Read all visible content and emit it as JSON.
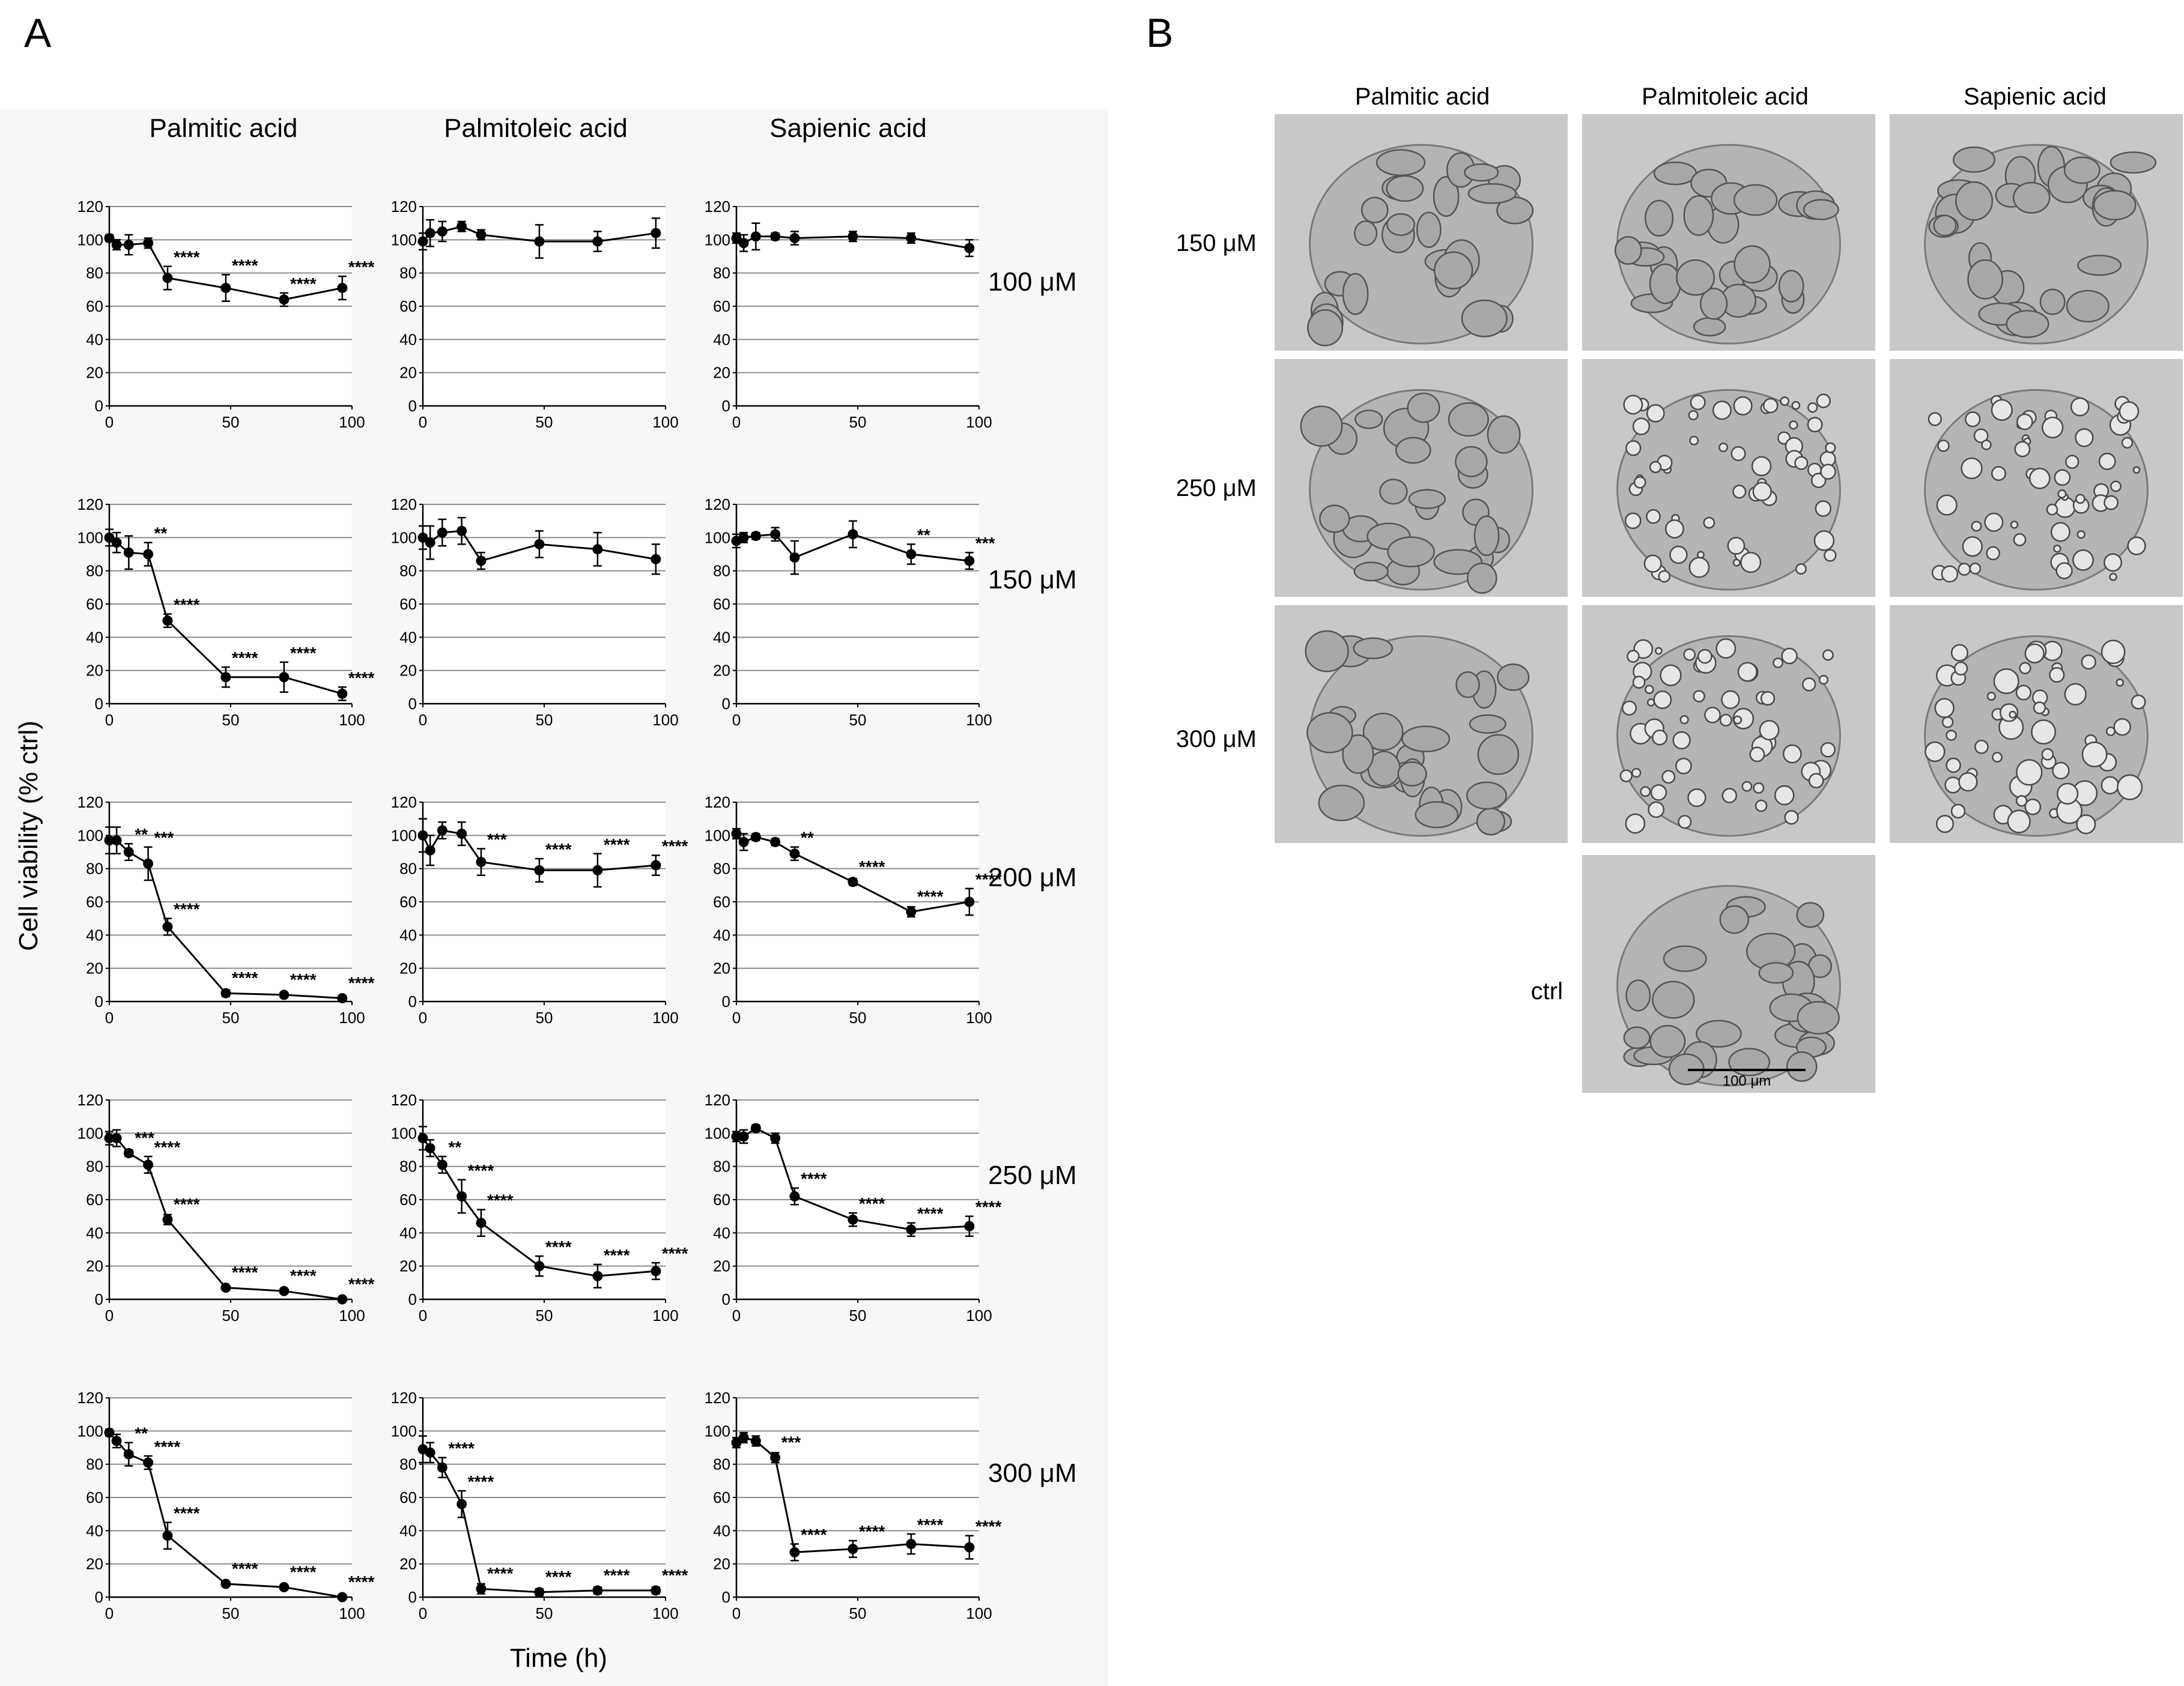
{
  "panels": {
    "a_label": "A",
    "b_label": "B"
  },
  "panelA": {
    "column_titles": [
      "Palmitic acid",
      "Palmitoleic acid",
      "Sapienic acid"
    ],
    "row_labels": [
      "100 μM",
      "150 μM",
      "200 μM",
      "250 μM",
      "300 μM"
    ],
    "ylabel": "Cell viability (% ctrl)",
    "xlabel": "Time (h)"
  },
  "panelB": {
    "column_titles": [
      "Palmitic acid",
      "Palmitoleic acid",
      "Sapienic acid"
    ],
    "row_labels": [
      "150 μM",
      "250 μM",
      "300 μM",
      "ctrl"
    ],
    "scale_bar_label": "100 μm",
    "image_kinds": [
      [
        "flat_cells",
        "flat_cells",
        "flat_cells"
      ],
      [
        "clustered_cells",
        "lipid_droplets",
        "lipid_droplets"
      ],
      [
        "dispersed_cells",
        "lipid_droplets_cluster",
        "lipid_droplets_dense"
      ]
    ],
    "ctrl_kind": "flat_cells"
  },
  "colors": {
    "marker": "#000000",
    "gridline": "#8c8c8c",
    "panel_background": "#f7f7f7",
    "photo_background": "#c8c8c8"
  },
  "chart_data": [
    {
      "type": "line",
      "title": "Palmitic acid",
      "subtitle": "100 μM",
      "x": [
        0,
        3,
        8,
        16,
        24,
        48,
        72,
        96
      ],
      "y": [
        101,
        97,
        97,
        98,
        77,
        71,
        64,
        71
      ],
      "err": [
        2,
        3,
        6,
        3,
        7,
        8,
        4,
        7
      ],
      "sig": [
        "",
        "",
        "",
        "",
        "****",
        "****",
        "****",
        "****"
      ],
      "ylim": [
        0,
        120
      ],
      "xlim": [
        0,
        100
      ],
      "yticks": [
        0,
        20,
        40,
        60,
        80,
        100,
        120
      ],
      "xticks": [
        0,
        50,
        100
      ],
      "grid": true
    },
    {
      "type": "line",
      "title": "Palmitoleic acid",
      "subtitle": "100 μM",
      "x": [
        0,
        3,
        8,
        16,
        24,
        48,
        72,
        96
      ],
      "y": [
        99,
        104,
        105,
        108,
        103,
        99,
        99,
        104
      ],
      "err": [
        5,
        8,
        6,
        3,
        3,
        10,
        6,
        9
      ],
      "sig": [
        "",
        "",
        "",
        "",
        "",
        "",
        "",
        ""
      ],
      "ylim": [
        0,
        120
      ],
      "xlim": [
        0,
        100
      ],
      "yticks": [
        0,
        20,
        40,
        60,
        80,
        100,
        120
      ],
      "xticks": [
        0,
        50,
        100
      ],
      "grid": true
    },
    {
      "type": "line",
      "title": "Sapienic acid",
      "subtitle": "100 μM",
      "x": [
        0,
        3,
        8,
        16,
        24,
        48,
        72,
        96
      ],
      "y": [
        101,
        98,
        102,
        102,
        101,
        102,
        101,
        95
      ],
      "err": [
        3,
        5,
        8,
        2,
        4,
        3,
        3,
        5
      ],
      "sig": [
        "",
        "",
        "",
        "",
        "",
        "",
        "",
        ""
      ],
      "ylim": [
        0,
        120
      ],
      "xlim": [
        0,
        100
      ],
      "yticks": [
        0,
        20,
        40,
        60,
        80,
        100,
        120
      ],
      "xticks": [
        0,
        50,
        100
      ],
      "grid": true
    },
    {
      "type": "line",
      "title": "Palmitic acid",
      "subtitle": "150 μM",
      "x": [
        0,
        3,
        8,
        16,
        24,
        48,
        72,
        96
      ],
      "y": [
        100,
        97,
        91,
        90,
        50,
        16,
        16,
        6
      ],
      "err": [
        5,
        6,
        10,
        7,
        4,
        6,
        9,
        4
      ],
      "sig": [
        "",
        "",
        "",
        "**",
        "****",
        "****",
        "****",
        "****"
      ],
      "ylim": [
        0,
        120
      ],
      "xlim": [
        0,
        100
      ],
      "yticks": [
        0,
        20,
        40,
        60,
        80,
        100,
        120
      ],
      "xticks": [
        0,
        50,
        100
      ],
      "grid": true
    },
    {
      "type": "line",
      "title": "Palmitoleic acid",
      "subtitle": "150 μM",
      "x": [
        0,
        3,
        8,
        16,
        24,
        48,
        72,
        96
      ],
      "y": [
        100,
        97,
        103,
        104,
        86,
        96,
        93,
        87
      ],
      "err": [
        7,
        10,
        8,
        8,
        5,
        8,
        10,
        9
      ],
      "sig": [
        "",
        "",
        "",
        "",
        "",
        "",
        "",
        ""
      ],
      "ylim": [
        0,
        120
      ],
      "xlim": [
        0,
        100
      ],
      "yticks": [
        0,
        20,
        40,
        60,
        80,
        100,
        120
      ],
      "xticks": [
        0,
        50,
        100
      ],
      "grid": true
    },
    {
      "type": "line",
      "title": "Sapienic acid",
      "subtitle": "150 μM",
      "x": [
        0,
        3,
        8,
        16,
        24,
        48,
        72,
        96
      ],
      "y": [
        98,
        100,
        101,
        102,
        88,
        102,
        90,
        86
      ],
      "err": [
        4,
        3,
        2,
        4,
        10,
        8,
        6,
        5
      ],
      "sig": [
        "",
        "",
        "",
        "",
        "",
        "",
        "**",
        "***"
      ],
      "ylim": [
        0,
        120
      ],
      "xlim": [
        0,
        100
      ],
      "yticks": [
        0,
        20,
        40,
        60,
        80,
        100,
        120
      ],
      "xticks": [
        0,
        50,
        100
      ],
      "grid": true
    },
    {
      "type": "line",
      "title": "Palmitic acid",
      "subtitle": "200 μM",
      "x": [
        0,
        3,
        8,
        16,
        24,
        48,
        72,
        96
      ],
      "y": [
        97,
        97,
        90,
        83,
        45,
        5,
        4,
        2
      ],
      "err": [
        8,
        8,
        5,
        10,
        5,
        2,
        1,
        1
      ],
      "sig": [
        "",
        "",
        "**",
        "***",
        "****",
        "****",
        "****",
        "****"
      ],
      "ylim": [
        0,
        120
      ],
      "xlim": [
        0,
        100
      ],
      "yticks": [
        0,
        20,
        40,
        60,
        80,
        100,
        120
      ],
      "xticks": [
        0,
        50,
        100
      ],
      "grid": true
    },
    {
      "type": "line",
      "title": "Palmitoleic acid",
      "subtitle": "200 μM",
      "x": [
        0,
        3,
        8,
        16,
        24,
        48,
        72,
        96
      ],
      "y": [
        100,
        91,
        103,
        101,
        84,
        79,
        79,
        82
      ],
      "err": [
        10,
        9,
        5,
        7,
        8,
        7,
        10,
        6
      ],
      "sig": [
        "",
        "",
        "",
        "",
        "***",
        "****",
        "****",
        "****"
      ],
      "ylim": [
        0,
        120
      ],
      "xlim": [
        0,
        100
      ],
      "yticks": [
        0,
        20,
        40,
        60,
        80,
        100,
        120
      ],
      "xticks": [
        0,
        50,
        100
      ],
      "grid": true
    },
    {
      "type": "line",
      "title": "Sapienic acid",
      "subtitle": "200 μM",
      "x": [
        0,
        3,
        8,
        16,
        24,
        48,
        72,
        96
      ],
      "y": [
        101,
        96,
        99,
        96,
        89,
        72,
        54,
        60
      ],
      "err": [
        3,
        5,
        2,
        2,
        4,
        2,
        3,
        8
      ],
      "sig": [
        "",
        "",
        "",
        "",
        "**",
        "****",
        "****",
        "****"
      ],
      "ylim": [
        0,
        120
      ],
      "xlim": [
        0,
        100
      ],
      "yticks": [
        0,
        20,
        40,
        60,
        80,
        100,
        120
      ],
      "xticks": [
        0,
        50,
        100
      ],
      "grid": true
    },
    {
      "type": "line",
      "title": "Palmitic acid",
      "subtitle": "250 μM",
      "x": [
        0,
        3,
        8,
        16,
        24,
        48,
        72,
        96
      ],
      "y": [
        97,
        97,
        88,
        81,
        48,
        7,
        5,
        0
      ],
      "err": [
        4,
        5,
        2,
        5,
        3,
        1,
        1,
        0.5
      ],
      "sig": [
        "",
        "",
        "***",
        "****",
        "****",
        "****",
        "****",
        "****"
      ],
      "ylim": [
        0,
        120
      ],
      "xlim": [
        0,
        100
      ],
      "yticks": [
        0,
        20,
        40,
        60,
        80,
        100,
        120
      ],
      "xticks": [
        0,
        50,
        100
      ],
      "grid": true
    },
    {
      "type": "line",
      "title": "Palmitoleic acid",
      "subtitle": "250 μM",
      "x": [
        0,
        3,
        8,
        16,
        24,
        48,
        72,
        96
      ],
      "y": [
        97,
        91,
        81,
        62,
        46,
        20,
        14,
        17
      ],
      "err": [
        7,
        5,
        5,
        10,
        8,
        6,
        7,
        5
      ],
      "sig": [
        "",
        "",
        "**",
        "****",
        "****",
        "****",
        "****",
        "****"
      ],
      "ylim": [
        0,
        120
      ],
      "xlim": [
        0,
        100
      ],
      "yticks": [
        0,
        20,
        40,
        60,
        80,
        100,
        120
      ],
      "xticks": [
        0,
        50,
        100
      ],
      "grid": true
    },
    {
      "type": "line",
      "title": "Sapienic acid",
      "subtitle": "250 μM",
      "x": [
        0,
        3,
        8,
        16,
        24,
        48,
        72,
        96
      ],
      "y": [
        98,
        98,
        103,
        97,
        62,
        48,
        42,
        44
      ],
      "err": [
        3,
        4,
        2,
        3,
        5,
        4,
        4,
        6
      ],
      "sig": [
        "",
        "",
        "",
        "",
        "****",
        "****",
        "****",
        "****"
      ],
      "ylim": [
        0,
        120
      ],
      "xlim": [
        0,
        100
      ],
      "yticks": [
        0,
        20,
        40,
        60,
        80,
        100,
        120
      ],
      "xticks": [
        0,
        50,
        100
      ],
      "grid": true
    },
    {
      "type": "line",
      "title": "Palmitic acid",
      "subtitle": "300 μM",
      "x": [
        0,
        3,
        8,
        16,
        24,
        48,
        72,
        96
      ],
      "y": [
        99,
        94,
        86,
        81,
        37,
        8,
        6,
        0
      ],
      "err": [
        2,
        4,
        7,
        4,
        8,
        1,
        1,
        0.5
      ],
      "sig": [
        "",
        "",
        "**",
        "****",
        "****",
        "****",
        "****",
        "****"
      ],
      "ylim": [
        0,
        120
      ],
      "xlim": [
        0,
        100
      ],
      "yticks": [
        0,
        20,
        40,
        60,
        80,
        100,
        120
      ],
      "xticks": [
        0,
        50,
        100
      ],
      "grid": true
    },
    {
      "type": "line",
      "title": "Palmitoleic acid",
      "subtitle": "300 μM",
      "x": [
        0,
        3,
        8,
        16,
        24,
        48,
        72,
        96
      ],
      "y": [
        89,
        87,
        78,
        56,
        5,
        3,
        4,
        4
      ],
      "err": [
        8,
        6,
        6,
        8,
        3,
        2,
        2,
        2
      ],
      "sig": [
        "",
        "",
        "****",
        "****",
        "****",
        "****",
        "****",
        "****"
      ],
      "ylim": [
        0,
        120
      ],
      "xlim": [
        0,
        100
      ],
      "yticks": [
        0,
        20,
        40,
        60,
        80,
        100,
        120
      ],
      "xticks": [
        0,
        50,
        100
      ],
      "grid": true
    },
    {
      "type": "line",
      "title": "Sapienic acid",
      "subtitle": "300 μM",
      "x": [
        0,
        3,
        8,
        16,
        24,
        48,
        72,
        96
      ],
      "y": [
        93,
        96,
        94,
        84,
        27,
        29,
        32,
        30
      ],
      "err": [
        3,
        3,
        3,
        3,
        5,
        5,
        6,
        7
      ],
      "sig": [
        "",
        "",
        "",
        "***",
        "****",
        "****",
        "****",
        "****"
      ],
      "ylim": [
        0,
        120
      ],
      "xlim": [
        0,
        100
      ],
      "yticks": [
        0,
        20,
        40,
        60,
        80,
        100,
        120
      ],
      "xticks": [
        0,
        50,
        100
      ],
      "grid": true
    }
  ]
}
